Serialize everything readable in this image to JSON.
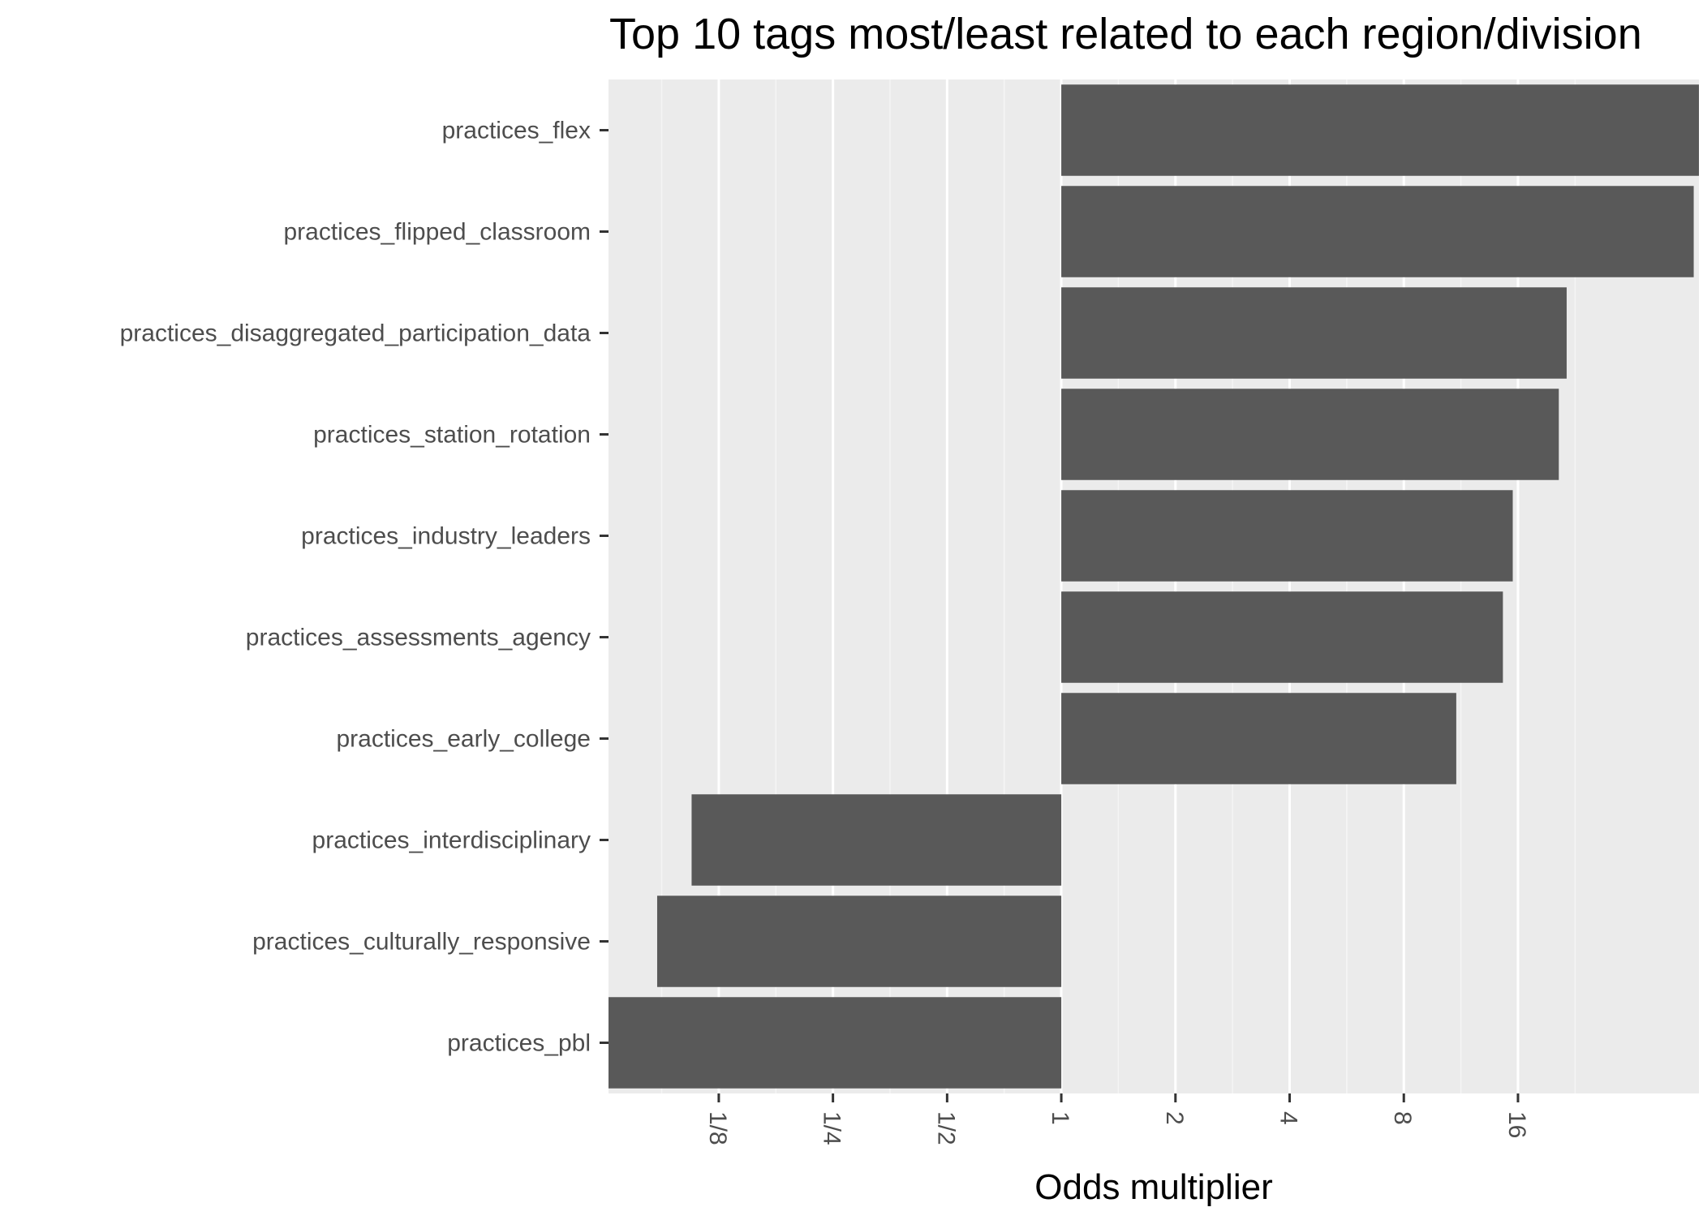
{
  "chart_data": {
    "type": "bar",
    "orientation": "horizontal",
    "title": "Top 10 tags most/least related to each region/division",
    "xlabel": "Odds multiplier",
    "ylabel": "",
    "x_scale": "log2",
    "xlim": [
      0.064,
      48
    ],
    "x_ticks": [
      0.125,
      0.25,
      0.5,
      1,
      2,
      4,
      8,
      16
    ],
    "x_tick_labels": [
      "1/8",
      "1/4",
      "1/2",
      "1",
      "2",
      "4",
      "8",
      "16"
    ],
    "baseline": 1,
    "grid": true,
    "categories": [
      "practices_flex",
      "practices_flipped_classroom",
      "practices_disaggregated_participation_data",
      "practices_station_rotation",
      "practices_industry_leaders",
      "practices_assessments_agency",
      "practices_early_college",
      "practices_interdisciplinary",
      "practices_culturally_responsive",
      "practices_pbl"
    ],
    "values": [
      48,
      46.5,
      21.5,
      20.5,
      15.5,
      14.6,
      11.0,
      0.106,
      0.086,
      0.064
    ],
    "colors": {
      "bar": "#595959",
      "panel": "#ebebeb",
      "grid_major": "#ffffff",
      "grid_minor": "#f5f5f5",
      "text": "#4d4d4d",
      "title": "#000000"
    }
  }
}
